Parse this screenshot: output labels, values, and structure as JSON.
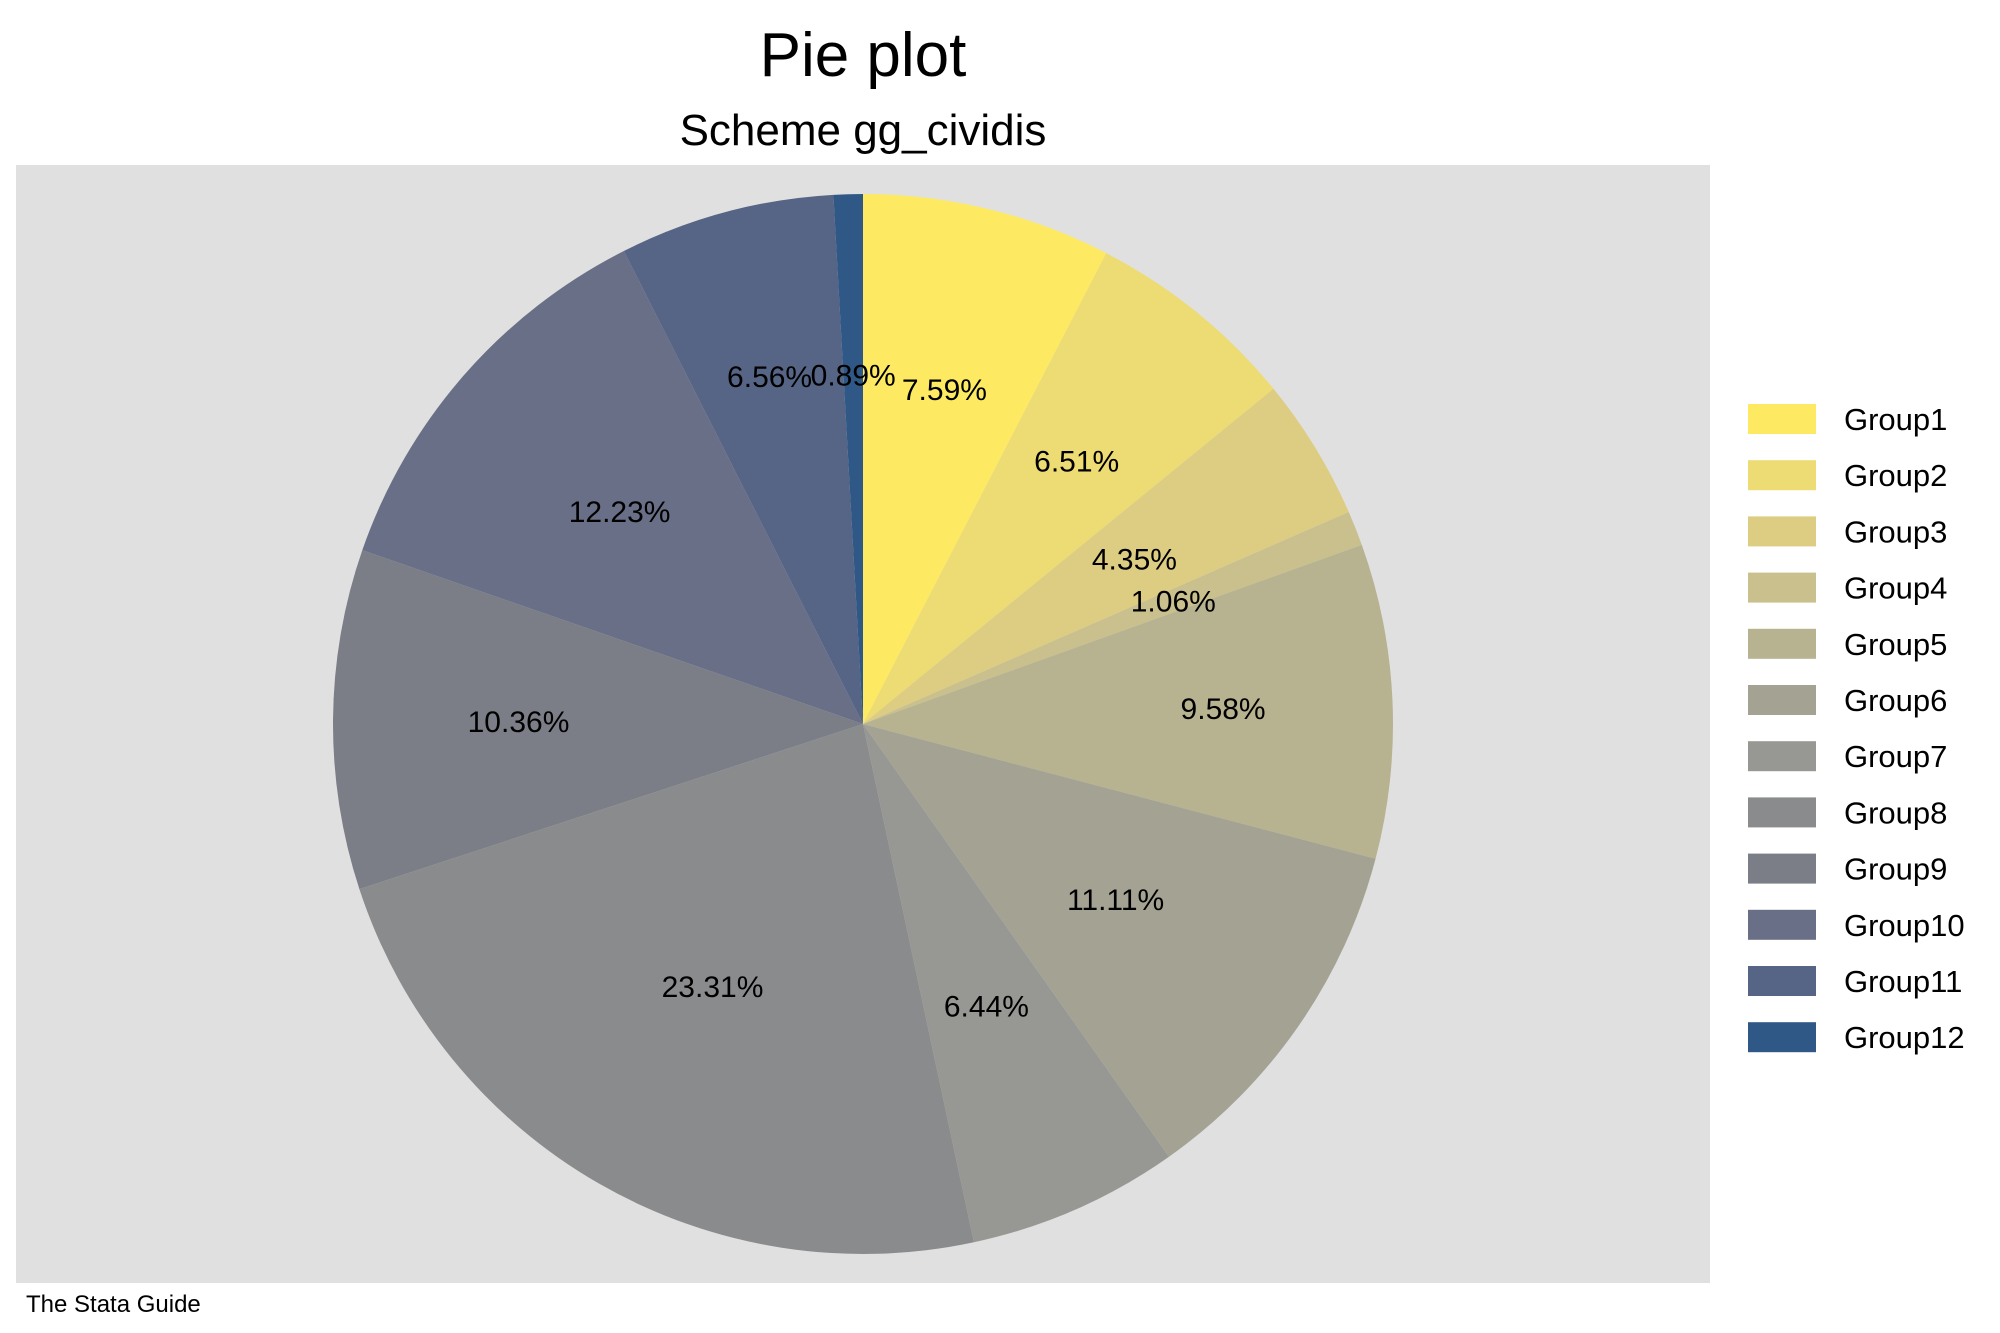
{
  "chart_data": {
    "type": "pie",
    "title": "Pie plot",
    "subtitle": "Scheme gg_cividis",
    "note": "The Stata Guide",
    "legend_position": "right",
    "categories": [
      "Group1",
      "Group2",
      "Group3",
      "Group4",
      "Group5",
      "Group6",
      "Group7",
      "Group8",
      "Group9",
      "Group10",
      "Group11",
      "Group12"
    ],
    "values": [
      7.59,
      6.51,
      4.35,
      1.06,
      9.58,
      11.11,
      6.44,
      23.31,
      10.36,
      12.23,
      6.56,
      0.89
    ],
    "labels": [
      "7.59%",
      "6.51%",
      "4.35%",
      "1.06%",
      "9.58%",
      "11.11%",
      "6.44%",
      "23.31%",
      "10.36%",
      "12.23%",
      "6.56%",
      "0.89%"
    ],
    "colors": [
      "#FDEA62",
      "#EDDB73",
      "#DCCD82",
      "#C9C08D",
      "#B7B290",
      "#A4A393",
      "#979794",
      "#8A8B8D",
      "#7B7E87",
      "#686F86",
      "#566485",
      "#2F5886"
    ],
    "start_angle": "12 o'clock",
    "direction": "clockwise",
    "plot_background": "#E0E0E0"
  }
}
